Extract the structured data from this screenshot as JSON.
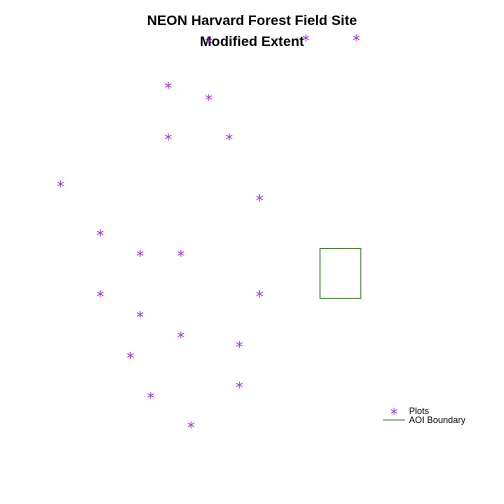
{
  "chart_data": {
    "type": "scatter",
    "title": "NEON Harvard Forest Field Site",
    "subtitle": "Modified Extent",
    "xlabel": "",
    "ylabel": "",
    "xlim": [
      0,
      100
    ],
    "ylim": [
      0,
      100
    ],
    "grid": false,
    "axes_visible": false,
    "legend_position": "bottom-right",
    "series": [
      {
        "name": "Plots",
        "kind": "points",
        "marker": "*",
        "color": "#9A32CD",
        "points": [
          {
            "x": 41.4,
            "y": 91.4
          },
          {
            "x": 60.7,
            "y": 92.0
          },
          {
            "x": 70.7,
            "y": 92.0
          },
          {
            "x": 33.4,
            "y": 82.5
          },
          {
            "x": 41.4,
            "y": 80.2
          },
          {
            "x": 33.4,
            "y": 72.3
          },
          {
            "x": 45.5,
            "y": 72.3
          },
          {
            "x": 12.0,
            "y": 63.0
          },
          {
            "x": 51.5,
            "y": 60.2
          },
          {
            "x": 19.9,
            "y": 53.3
          },
          {
            "x": 27.8,
            "y": 49.2
          },
          {
            "x": 35.9,
            "y": 49.2
          },
          {
            "x": 19.9,
            "y": 41.2
          },
          {
            "x": 51.5,
            "y": 41.2
          },
          {
            "x": 27.8,
            "y": 37.1
          },
          {
            "x": 35.9,
            "y": 33.0
          },
          {
            "x": 47.5,
            "y": 31.2
          },
          {
            "x": 25.9,
            "y": 29.0
          },
          {
            "x": 47.5,
            "y": 23.1
          },
          {
            "x": 29.9,
            "y": 21.0
          },
          {
            "x": 37.9,
            "y": 15.2
          }
        ]
      },
      {
        "name": "AOI Boundary",
        "kind": "rectangle",
        "color": "#4A7C3A",
        "xmin": 63.5,
        "xmax": 71.6,
        "ymin": 40.8,
        "ymax": 50.7
      }
    ],
    "legend": {
      "position": "bottom-right",
      "entries": [
        {
          "label": "Plots",
          "symbol": "*",
          "color": "#9A32CD"
        },
        {
          "label": "AOI Boundary",
          "symbol": "line",
          "color": "#4A7C3A"
        }
      ]
    }
  }
}
